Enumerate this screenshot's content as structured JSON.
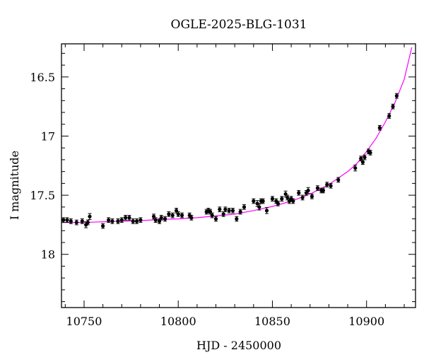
{
  "chart_data": {
    "type": "scatter",
    "title": "OGLE-2025-BLG-1031",
    "xlabel": "HJD - 2450000",
    "ylabel": "I magnitude",
    "xlim": [
      10738,
      10926
    ],
    "ylim": [
      18.45,
      16.22
    ],
    "y_inverted": true,
    "xticks": [
      10750,
      10800,
      10850,
      10900
    ],
    "yticks": [
      16.5,
      17,
      17.5,
      18
    ],
    "ytick_labels": [
      "16.5",
      "17",
      "17.5",
      "18"
    ],
    "grid": false,
    "colors": {
      "points": "#000000",
      "model": "#ff00ff",
      "frame": "#000000"
    },
    "series": [
      {
        "kind": "points_with_errorbars",
        "x": [
          10739,
          10741,
          10743,
          10746,
          10749,
          10751,
          10752,
          10753,
          10760,
          10763,
          10765,
          10768,
          10770,
          10772,
          10774,
          10776,
          10778,
          10780,
          10787,
          10788,
          10790,
          10791,
          10793,
          10795,
          10797,
          10799,
          10800,
          10802,
          10806,
          10807,
          10815,
          10816,
          10817,
          10818,
          10820,
          10822,
          10824,
          10825,
          10827,
          10829,
          10831,
          10833,
          10835,
          10840,
          10842,
          10843,
          10844,
          10845,
          10847,
          10850,
          10852,
          10853,
          10855,
          10857,
          10858,
          10859,
          10860,
          10861,
          10864,
          10866,
          10868,
          10869,
          10871,
          10874,
          10876,
          10877,
          10879,
          10881,
          10885,
          10894,
          10897,
          10898,
          10899,
          10901,
          10902,
          10907,
          10912,
          10914,
          10916
        ],
        "y": [
          17.71,
          17.71,
          17.72,
          17.73,
          17.72,
          17.75,
          17.73,
          17.68,
          17.76,
          17.71,
          17.72,
          17.72,
          17.71,
          17.69,
          17.69,
          17.72,
          17.72,
          17.71,
          17.68,
          17.71,
          17.72,
          17.69,
          17.7,
          17.66,
          17.67,
          17.63,
          17.66,
          17.67,
          17.67,
          17.69,
          17.64,
          17.63,
          17.64,
          17.67,
          17.7,
          17.62,
          17.66,
          17.62,
          17.63,
          17.63,
          17.7,
          17.64,
          17.6,
          17.55,
          17.57,
          17.6,
          17.55,
          17.55,
          17.63,
          17.53,
          17.55,
          17.57,
          17.53,
          17.49,
          17.52,
          17.55,
          17.53,
          17.55,
          17.48,
          17.52,
          17.48,
          17.46,
          17.51,
          17.44,
          17.46,
          17.46,
          17.41,
          17.42,
          17.37,
          17.27,
          17.19,
          17.22,
          17.18,
          17.13,
          17.14,
          16.93,
          16.83,
          16.75,
          16.66
        ],
        "err": [
          0.02,
          0.02,
          0.02,
          0.02,
          0.02,
          0.025,
          0.02,
          0.025,
          0.02,
          0.02,
          0.02,
          0.02,
          0.02,
          0.02,
          0.02,
          0.02,
          0.02,
          0.02,
          0.02,
          0.02,
          0.02,
          0.02,
          0.02,
          0.02,
          0.02,
          0.02,
          0.02,
          0.02,
          0.02,
          0.02,
          0.02,
          0.02,
          0.02,
          0.02,
          0.02,
          0.02,
          0.02,
          0.02,
          0.02,
          0.02,
          0.02,
          0.02,
          0.02,
          0.02,
          0.025,
          0.025,
          0.02,
          0.02,
          0.025,
          0.02,
          0.02,
          0.02,
          0.02,
          0.025,
          0.02,
          0.02,
          0.02,
          0.02,
          0.02,
          0.02,
          0.02,
          0.025,
          0.02,
          0.02,
          0.02,
          0.02,
          0.02,
          0.02,
          0.02,
          0.025,
          0.02,
          0.02,
          0.02,
          0.02,
          0.02,
          0.02,
          0.02,
          0.02,
          0.02
        ]
      },
      {
        "kind": "model_curve",
        "x": [
          10738,
          10750,
          10760,
          10770,
          10780,
          10790,
          10800,
          10810,
          10820,
          10830,
          10840,
          10850,
          10860,
          10870,
          10880,
          10890,
          10895,
          10900,
          10905,
          10910,
          10915,
          10920,
          10924
        ],
        "y": [
          17.73,
          17.73,
          17.725,
          17.72,
          17.715,
          17.705,
          17.7,
          17.69,
          17.675,
          17.66,
          17.63,
          17.595,
          17.55,
          17.49,
          17.41,
          17.3,
          17.23,
          17.13,
          17.02,
          16.88,
          16.72,
          16.52,
          16.25
        ]
      }
    ]
  }
}
